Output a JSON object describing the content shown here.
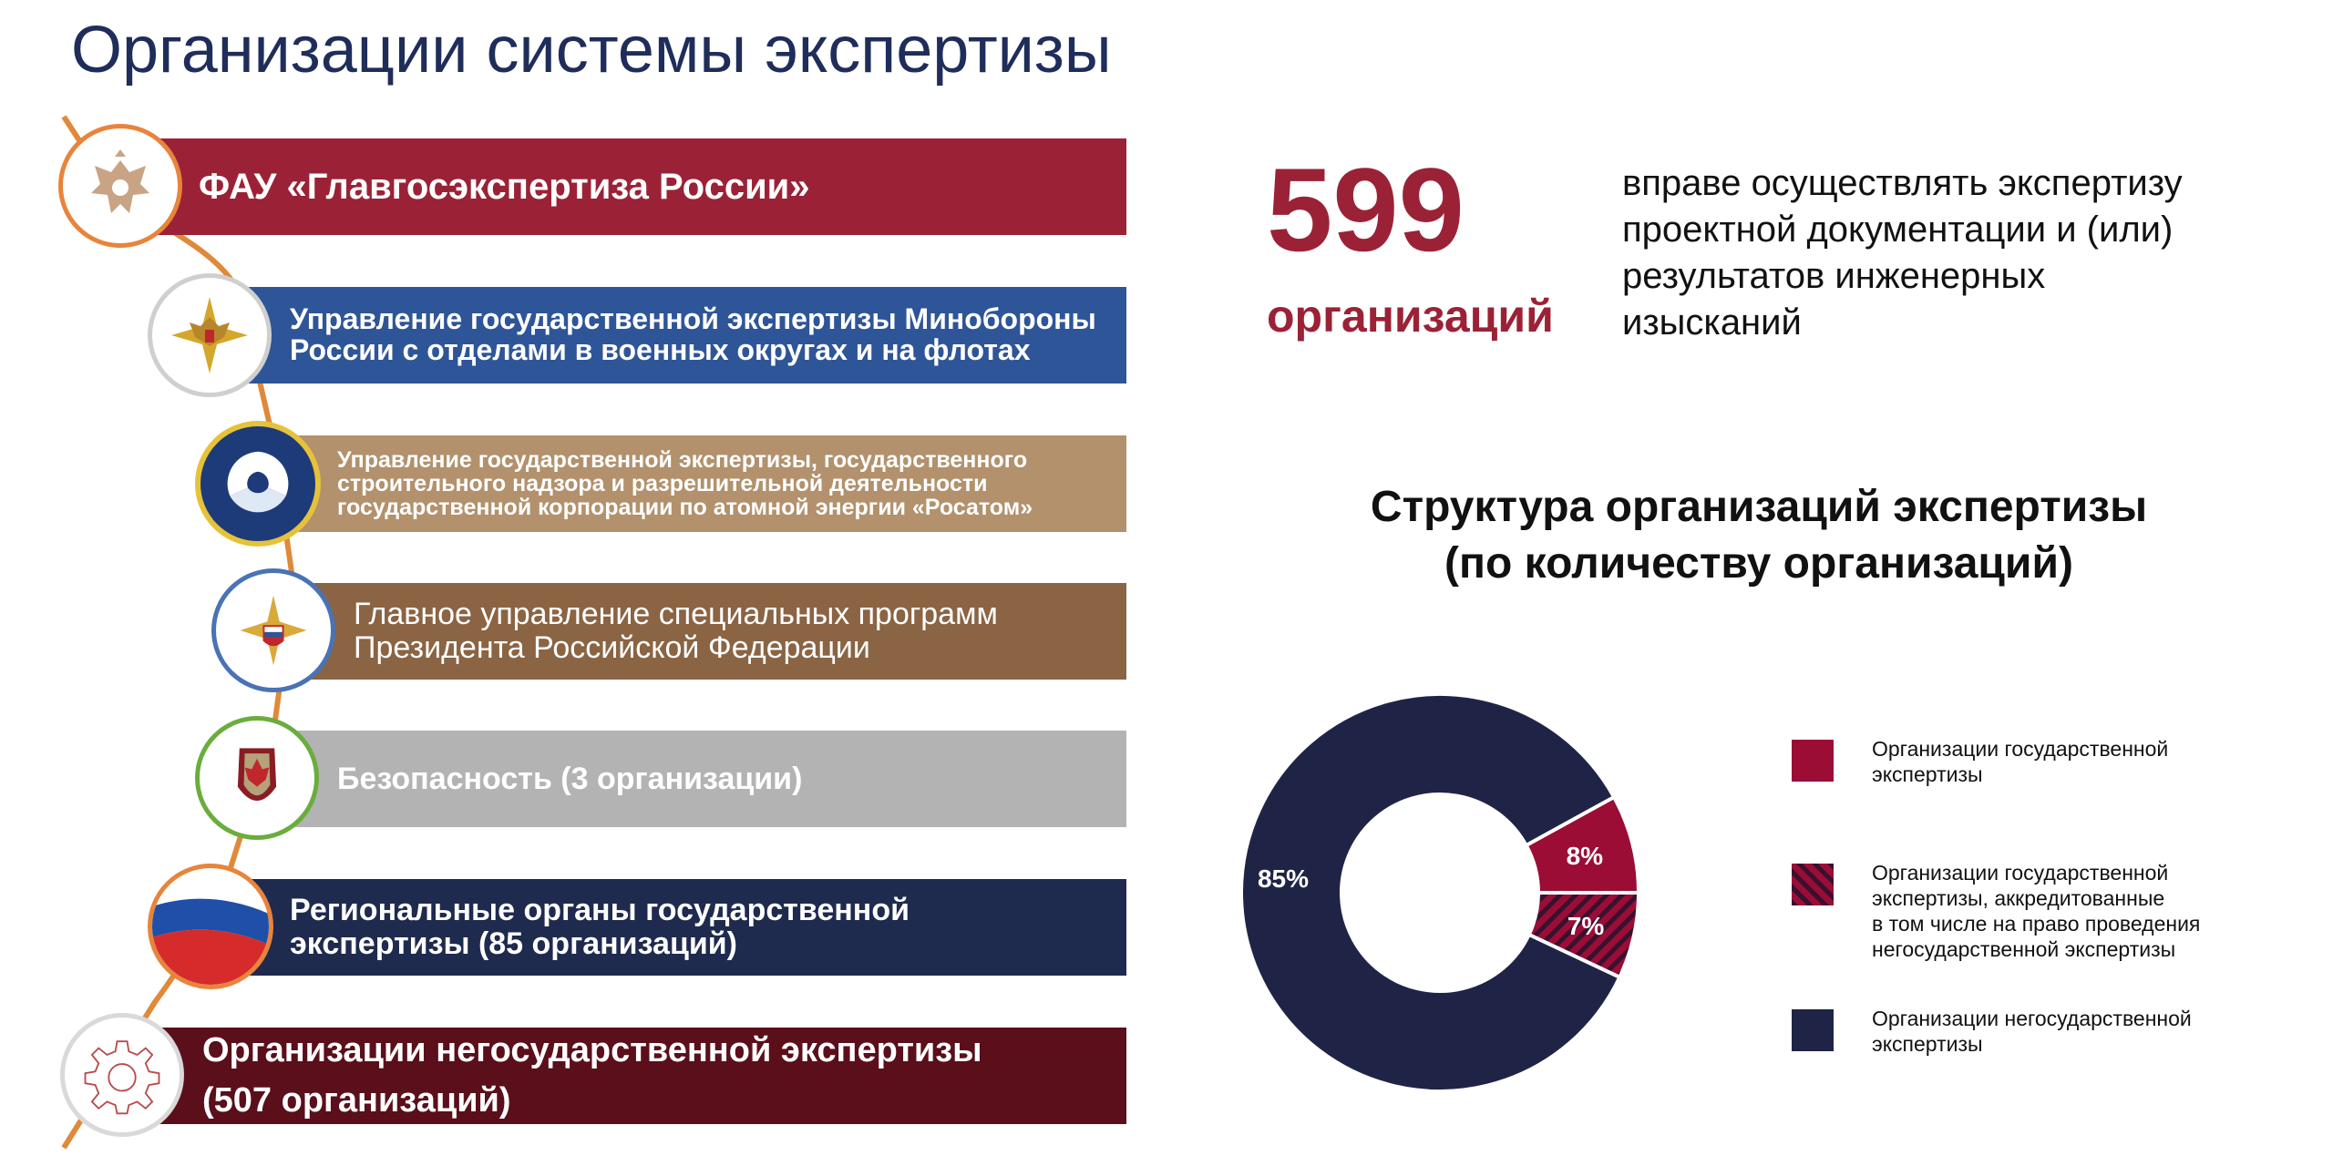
{
  "page_title": "Организации системы экспертизы",
  "list": [
    {
      "lines": [
        "ФАУ «Главгосэкспертиза России»"
      ],
      "color": "#9b2236",
      "badge_icon": "double-headed-eagle-emblem-icon"
    },
    {
      "lines": [
        "Управление государственной экспертизы Минобороны",
        "России с отделами в военных округах и на флотах"
      ],
      "color": "#2e5597",
      "badge_icon": "ministry-of-defence-emblem-icon"
    },
    {
      "lines": [
        "Управление государственной экспертизы, государственного",
        "строительного надзора и разрешительной деятельности",
        "государственной корпорации по атомной энергии «Росатом»"
      ],
      "color": "#b2916c",
      "badge_icon": "rosatom-logo-icon"
    },
    {
      "lines": [
        "Главное управление специальных программ",
        "Президента Российской Федерации"
      ],
      "color": "#8a6443",
      "badge_icon": "gusp-emblem-icon"
    },
    {
      "lines": [
        "Безопасность (3 организации)"
      ],
      "color": "#b3b3b3",
      "badge_icon": "fsb-shield-emblem-icon"
    },
    {
      "lines": [
        "Региональные органы государственной",
        "экспертизы (85 организаций)"
      ],
      "color": "#1f2a4f",
      "badge_icon": "russian-flag-icon"
    },
    {
      "lines": [
        "Организации негосударственной экспертизы",
        "(507 организаций)"
      ],
      "color": "#5a0f1a",
      "badge_icon": "gear-icon"
    }
  ],
  "summary": {
    "number": "599",
    "unit": "организаций",
    "description": [
      "вправе осуществлять экспертизу",
      "проектной документации и (или)",
      "результатов инженерных",
      "изысканий"
    ]
  },
  "chart_data": {
    "type": "pie",
    "variant": "donut",
    "title": [
      "Структура организаций экспертизы",
      "(по количеству организаций)"
    ],
    "slices": [
      {
        "label": "Организации государственной экспертизы",
        "legend_lines": [
          "Организации государственной",
          "экспертизы"
        ],
        "value": 8,
        "value_label": "8%",
        "color": "#9b0d35",
        "pattern": "solid"
      },
      {
        "label": "Организации государственной экспертизы, аккредитованные в том числе на право проведения негосударственной экспертизы",
        "legend_lines": [
          "Организации государственной",
          "экспертизы, аккредитованные",
          "в том числе на право проведения",
          "негосударственной экспертизы"
        ],
        "value": 7,
        "value_label": "7%",
        "color": "#9b0d35",
        "pattern": "hatched"
      },
      {
        "label": "Организации негосударственной экспертизы",
        "legend_lines": [
          "Организации негосударственной",
          "экспертизы"
        ],
        "value": 85,
        "value_label": "85%",
        "color": "#1f2447",
        "pattern": "solid"
      }
    ],
    "legend_position": "right"
  }
}
